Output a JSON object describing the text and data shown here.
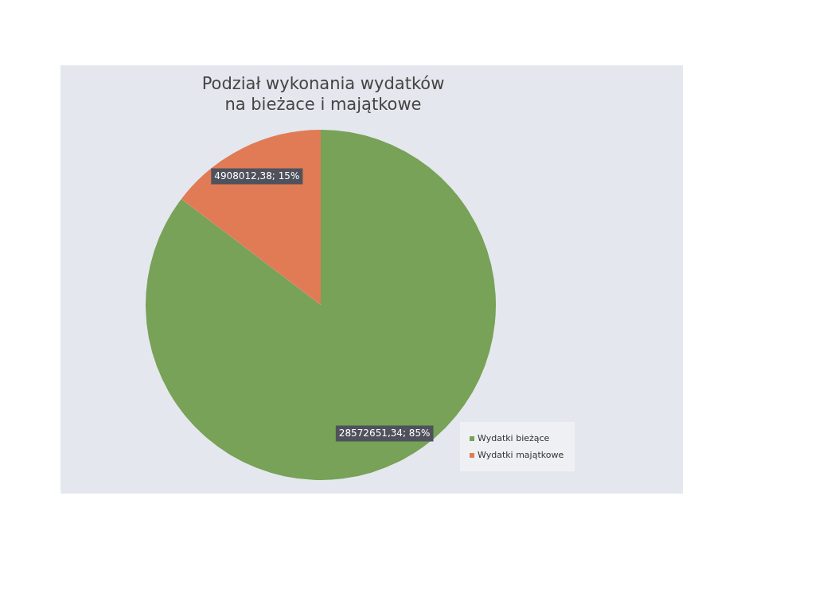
{
  "chart_data": {
    "type": "pie",
    "title": "Podział wykonania wydatków na bieżace i majątkowe",
    "categories": [
      "Wydatki bieżące",
      "Wydatki majątkowe"
    ],
    "values": [
      28572651.34,
      4908012.38
    ],
    "colors": [
      "#77a257",
      "#e07b55"
    ],
    "value_labels": [
      "28572651,34; 85%",
      "4908012,38; 15%"
    ],
    "legend": "bottom right"
  }
}
